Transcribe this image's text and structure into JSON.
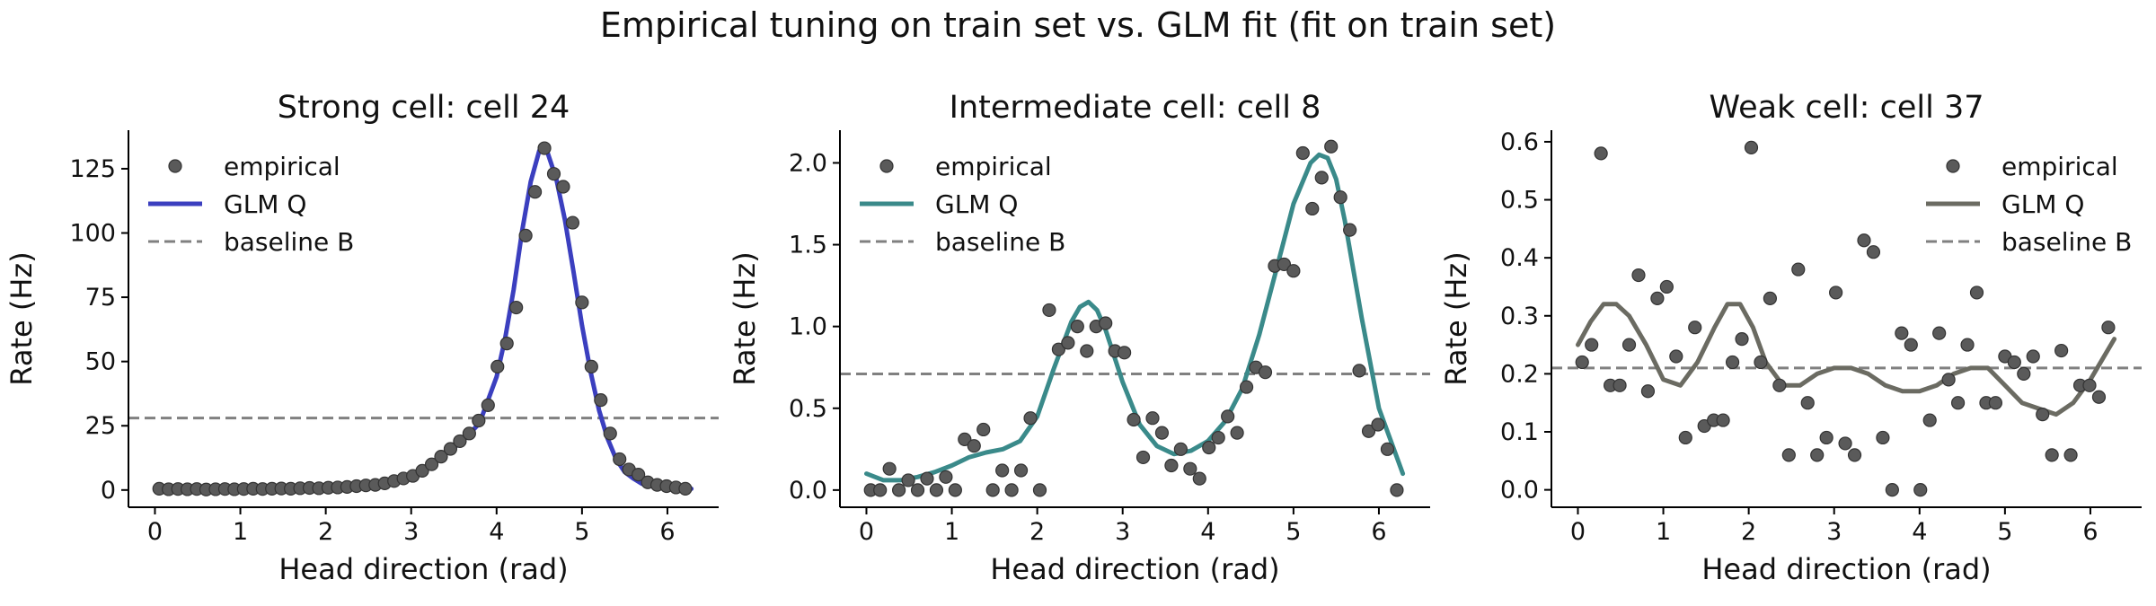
{
  "figure": {
    "title": "Empirical tuning on train set vs. GLM fit (fit on train set)"
  },
  "colors": {
    "empirical": "#5a5a5a",
    "baseline": "#808080"
  },
  "chart_data": [
    {
      "type": "line",
      "title": "Strong cell: cell 24",
      "xlabel": "Head direction (rad)",
      "ylabel": "Rate (Hz)",
      "xlim": [
        -0.31,
        6.6
      ],
      "ylim": [
        -6.7,
        140
      ],
      "xticks": [
        0,
        1,
        2,
        3,
        4,
        5,
        6
      ],
      "yticks": [
        0,
        25,
        50,
        75,
        100,
        125
      ],
      "legend_position": "upper-left",
      "legend": [
        "empirical",
        "GLM Q",
        "baseline B"
      ],
      "glm_color": "#3b3fbf",
      "baseline": 28,
      "series": [
        {
          "name": "empirical",
          "kind": "scatter",
          "x": [
            0.05,
            0.16,
            0.27,
            0.38,
            0.49,
            0.6,
            0.71,
            0.82,
            0.93,
            1.04,
            1.15,
            1.26,
            1.37,
            1.48,
            1.59,
            1.7,
            1.81,
            1.92,
            2.03,
            2.14,
            2.25,
            2.36,
            2.47,
            2.58,
            2.69,
            2.8,
            2.91,
            3.02,
            3.13,
            3.24,
            3.35,
            3.46,
            3.57,
            3.68,
            3.79,
            3.9,
            4.01,
            4.12,
            4.23,
            4.34,
            4.45,
            4.56,
            4.67,
            4.78,
            4.89,
            5.0,
            5.11,
            5.22,
            5.33,
            5.44,
            5.55,
            5.66,
            5.77,
            5.88,
            5.99,
            6.1,
            6.21
          ],
          "y": [
            0.5,
            0.3,
            0.4,
            0.3,
            0.4,
            0.2,
            0.3,
            0.4,
            0.3,
            0.4,
            0.5,
            0.4,
            0.5,
            0.6,
            0.5,
            0.7,
            0.8,
            0.7,
            0.9,
            1.0,
            1.2,
            1.5,
            1.8,
            2.0,
            2.6,
            3.5,
            4.5,
            5.5,
            7.5,
            10,
            13,
            16,
            19,
            22,
            27,
            33,
            48,
            57,
            71,
            99,
            116,
            133,
            123,
            118,
            104,
            73,
            48,
            35,
            22,
            12,
            8,
            6,
            3,
            2,
            1.5,
            1,
            0.5
          ]
        },
        {
          "name": "GLM Q",
          "kind": "line",
          "x": [
            0,
            0.2,
            0.4,
            0.6,
            0.8,
            1.0,
            1.2,
            1.4,
            1.6,
            1.8,
            2.0,
            2.2,
            2.4,
            2.6,
            2.8,
            3.0,
            3.2,
            3.4,
            3.6,
            3.8,
            4.0,
            4.1,
            4.2,
            4.3,
            4.4,
            4.5,
            4.55,
            4.6,
            4.7,
            4.8,
            4.9,
            5.0,
            5.1,
            5.2,
            5.3,
            5.4,
            5.5,
            5.6,
            5.7,
            5.8,
            6.0,
            6.28
          ],
          "y": [
            0.3,
            0.3,
            0.3,
            0.3,
            0.3,
            0.4,
            0.4,
            0.4,
            0.5,
            0.6,
            0.7,
            0.9,
            1.2,
            2.0,
            3.0,
            5.0,
            8.5,
            14,
            19,
            26,
            44,
            59,
            78,
            101,
            120,
            132,
            133,
            131,
            121,
            105,
            85,
            64,
            46,
            31,
            20,
            12,
            7,
            4.5,
            2.5,
            1.5,
            0.8,
            0.5
          ]
        }
      ]
    },
    {
      "type": "line",
      "title": "Intermediate cell: cell 8",
      "xlabel": "Head direction (rad)",
      "ylabel": "Rate (Hz)",
      "xlim": [
        -0.31,
        6.6
      ],
      "ylim": [
        -0.105,
        2.2
      ],
      "xticks": [
        0,
        1,
        2,
        3,
        4,
        5,
        6
      ],
      "yticks": [
        0.0,
        0.5,
        1.0,
        1.5,
        2.0
      ],
      "legend_position": "upper-left",
      "legend": [
        "empirical",
        "GLM Q",
        "baseline B"
      ],
      "glm_color": "#3a8a8a",
      "baseline": 0.71,
      "series": [
        {
          "name": "empirical",
          "kind": "scatter",
          "x": [
            0.05,
            0.16,
            0.27,
            0.38,
            0.49,
            0.6,
            0.71,
            0.82,
            0.93,
            1.04,
            1.15,
            1.26,
            1.37,
            1.48,
            1.59,
            1.7,
            1.81,
            1.92,
            2.03,
            2.14,
            2.25,
            2.36,
            2.47,
            2.58,
            2.69,
            2.8,
            2.91,
            3.02,
            3.13,
            3.24,
            3.35,
            3.46,
            3.57,
            3.68,
            3.79,
            3.9,
            4.01,
            4.12,
            4.23,
            4.34,
            4.45,
            4.56,
            4.67,
            4.78,
            4.89,
            5.0,
            5.11,
            5.22,
            5.33,
            5.44,
            5.55,
            5.66,
            5.77,
            5.88,
            5.99,
            6.1,
            6.21
          ],
          "y": [
            0.0,
            0.0,
            0.13,
            0.0,
            0.06,
            0.0,
            0.07,
            0.0,
            0.08,
            0.0,
            0.31,
            0.27,
            0.37,
            0.0,
            0.12,
            0.0,
            0.12,
            0.44,
            0.0,
            1.1,
            0.86,
            0.9,
            1.0,
            0.85,
            1.0,
            1.02,
            0.85,
            0.84,
            0.43,
            0.2,
            0.44,
            0.35,
            0.15,
            0.25,
            0.13,
            0.07,
            0.26,
            0.32,
            0.45,
            0.35,
            0.63,
            0.75,
            0.72,
            1.37,
            1.38,
            1.34,
            2.06,
            1.72,
            1.91,
            2.1,
            1.79,
            1.59,
            0.73,
            0.36,
            0.4,
            0.25,
            0.0
          ]
        },
        {
          "name": "GLM Q",
          "kind": "line",
          "x": [
            0,
            0.2,
            0.4,
            0.6,
            0.8,
            1.0,
            1.2,
            1.4,
            1.6,
            1.8,
            2.0,
            2.2,
            2.4,
            2.5,
            2.6,
            2.7,
            2.8,
            3.0,
            3.2,
            3.4,
            3.6,
            3.8,
            4.0,
            4.2,
            4.4,
            4.6,
            4.8,
            5.0,
            5.2,
            5.3,
            5.4,
            5.5,
            5.6,
            5.8,
            6.0,
            6.28
          ],
          "y": [
            0.1,
            0.06,
            0.06,
            0.08,
            0.11,
            0.15,
            0.2,
            0.23,
            0.25,
            0.3,
            0.45,
            0.75,
            1.03,
            1.12,
            1.15,
            1.1,
            0.98,
            0.66,
            0.4,
            0.27,
            0.22,
            0.24,
            0.3,
            0.42,
            0.62,
            0.95,
            1.35,
            1.75,
            2.0,
            2.05,
            2.03,
            1.9,
            1.65,
            1.05,
            0.5,
            0.1
          ]
        }
      ]
    },
    {
      "type": "line",
      "title": "Weak cell: cell 37",
      "xlabel": "Head direction (rad)",
      "ylabel": "Rate (Hz)",
      "xlim": [
        -0.31,
        6.6
      ],
      "ylim": [
        -0.03,
        0.62
      ],
      "xticks": [
        0,
        1,
        2,
        3,
        4,
        5,
        6
      ],
      "yticks": [
        0.0,
        0.1,
        0.2,
        0.3,
        0.4,
        0.5,
        0.6
      ],
      "legend_position": "upper-right",
      "legend": [
        "empirical",
        "GLM Q",
        "baseline B"
      ],
      "glm_color": "#6b6b62",
      "baseline": 0.21,
      "series": [
        {
          "name": "empirical",
          "kind": "scatter",
          "x": [
            0.05,
            0.16,
            0.27,
            0.38,
            0.49,
            0.6,
            0.71,
            0.82,
            0.93,
            1.04,
            1.15,
            1.26,
            1.37,
            1.48,
            1.59,
            1.7,
            1.81,
            1.92,
            2.03,
            2.14,
            2.25,
            2.36,
            2.47,
            2.58,
            2.69,
            2.8,
            2.91,
            3.02,
            3.13,
            3.24,
            3.35,
            3.46,
            3.57,
            3.68,
            3.79,
            3.9,
            4.01,
            4.12,
            4.23,
            4.34,
            4.45,
            4.56,
            4.67,
            4.78,
            4.89,
            5.0,
            5.11,
            5.22,
            5.33,
            5.44,
            5.55,
            5.66,
            5.77,
            5.88,
            5.99,
            6.1,
            6.21
          ],
          "y": [
            0.22,
            0.25,
            0.58,
            0.18,
            0.18,
            0.25,
            0.37,
            0.17,
            0.33,
            0.35,
            0.23,
            0.09,
            0.28,
            0.11,
            0.12,
            0.12,
            0.22,
            0.26,
            0.59,
            0.22,
            0.33,
            0.18,
            0.06,
            0.38,
            0.15,
            0.06,
            0.09,
            0.34,
            0.08,
            0.06,
            0.43,
            0.41,
            0.09,
            0.0,
            0.27,
            0.25,
            0.0,
            0.12,
            0.27,
            0.19,
            0.15,
            0.25,
            0.34,
            0.15,
            0.15,
            0.23,
            0.22,
            0.2,
            0.23,
            0.13,
            0.06,
            0.24,
            0.06,
            0.18,
            0.18,
            0.16,
            0.28
          ]
        },
        {
          "name": "GLM Q",
          "kind": "line",
          "x": [
            0,
            0.15,
            0.3,
            0.45,
            0.6,
            0.8,
            1.0,
            1.2,
            1.4,
            1.6,
            1.75,
            1.9,
            2.05,
            2.2,
            2.4,
            2.6,
            2.8,
            3.0,
            3.2,
            3.4,
            3.6,
            3.8,
            4.0,
            4.2,
            4.4,
            4.6,
            4.8,
            5.0,
            5.2,
            5.4,
            5.6,
            5.8,
            6.0,
            6.28
          ],
          "y": [
            0.25,
            0.29,
            0.32,
            0.32,
            0.3,
            0.25,
            0.19,
            0.18,
            0.22,
            0.28,
            0.32,
            0.32,
            0.28,
            0.22,
            0.18,
            0.18,
            0.2,
            0.21,
            0.21,
            0.2,
            0.18,
            0.17,
            0.17,
            0.18,
            0.2,
            0.21,
            0.21,
            0.18,
            0.15,
            0.14,
            0.13,
            0.15,
            0.19,
            0.26
          ]
        }
      ]
    }
  ]
}
